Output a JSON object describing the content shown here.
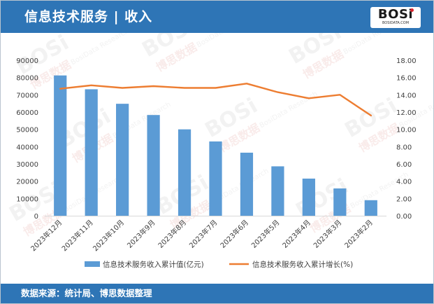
{
  "header": {
    "title": "信息技术服务 | 收入",
    "logo_text": "BOSi",
    "logo_sub": "BOSIDATA.COM"
  },
  "footer": {
    "source": "数据来源：统计局、博思数据整理"
  },
  "watermark": {
    "text": "BOSi",
    "cn": "博思数据",
    "en": "BosiData Research"
  },
  "colors": {
    "header_bg": "#2e75b6",
    "bar": "#5b9bd5",
    "line": "#ed7d31",
    "axis_text": "#3f3f3f",
    "axis_line": "#d9d9d9"
  },
  "chart_data": {
    "type": "bar",
    "categories": [
      "2023年12月",
      "2023年11月",
      "2023年10月",
      "2023年9月",
      "2023年8月",
      "2023年7月",
      "2023年6月",
      "2023年5月",
      "2023年4月",
      "2023年3月",
      "2023年2月"
    ],
    "series": [
      {
        "name": "信息技术服务收入累计值(亿元)",
        "type": "bar",
        "axis": "left",
        "values": [
          81200,
          73200,
          64800,
          58300,
          50000,
          43000,
          36500,
          28600,
          21500,
          15800,
          9000
        ]
      },
      {
        "name": "信息技术服务收入累计增长(%)",
        "type": "line",
        "axis": "right",
        "values": [
          14.7,
          15.1,
          14.8,
          15.0,
          14.8,
          14.8,
          15.3,
          14.3,
          13.6,
          14.0,
          11.6
        ]
      }
    ],
    "y_left": {
      "min": 0,
      "max": 90000,
      "step": 10000,
      "ticks": [
        "0",
        "10000",
        "20000",
        "30000",
        "40000",
        "50000",
        "60000",
        "70000",
        "80000",
        "90000"
      ]
    },
    "y_right": {
      "min": 0,
      "max": 18,
      "step": 2,
      "ticks": [
        "0.00",
        "2.00",
        "4.00",
        "6.00",
        "8.00",
        "10.00",
        "12.00",
        "14.00",
        "16.00",
        "18.00"
      ]
    },
    "grid": false,
    "legend_position": "bottom"
  }
}
